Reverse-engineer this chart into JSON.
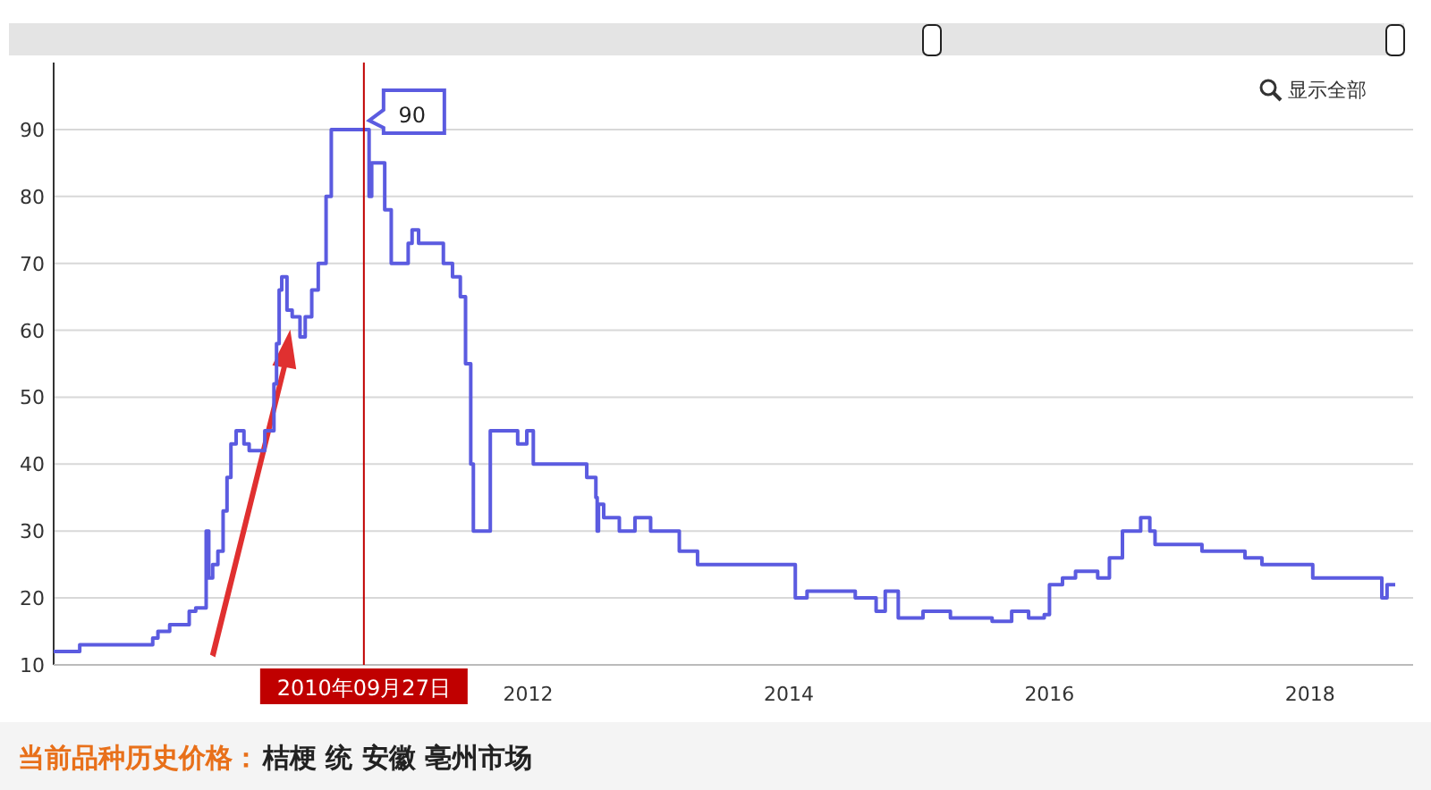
{
  "chart_data": {
    "type": "step",
    "xlim": [
      2008.36,
      2018.79
    ],
    "xticks": [
      2012,
      2014,
      2016,
      2018
    ],
    "ylim": [
      10,
      100
    ],
    "yticks": [
      10,
      20,
      30,
      40,
      50,
      60,
      70,
      80,
      90
    ],
    "grid": "y",
    "line_style": "solid",
    "marker": "none",
    "series": [
      {
        "color": "#5b5be0",
        "x": [
          2008.36,
          2008.56,
          2009.12,
          2009.16,
          2009.25,
          2009.4,
          2009.45,
          2009.53,
          2009.55,
          2009.58,
          2009.62,
          2009.66,
          2009.69,
          2009.72,
          2009.76,
          2009.82,
          2009.86,
          2009.98,
          2010.05,
          2010.07,
          2010.09,
          2010.11,
          2010.15,
          2010.19,
          2010.25,
          2010.29,
          2010.34,
          2010.39,
          2010.45,
          2010.49,
          2010.78,
          2010.8,
          2010.9,
          2010.95,
          2011.08,
          2011.11,
          2011.16,
          2011.35,
          2011.42,
          2011.48,
          2011.52,
          2011.56,
          2011.58,
          2011.71,
          2011.92,
          2011.99,
          2012.04,
          2012.45,
          2012.52,
          2012.53,
          2012.54,
          2012.58,
          2012.64,
          2012.7,
          2012.82,
          2012.94,
          2013.16,
          2013.3,
          2013.47,
          2014.05,
          2014.14,
          2014.51,
          2014.67,
          2014.74,
          2014.84,
          2015.03,
          2015.24,
          2015.56,
          2015.71,
          2015.84,
          2015.96,
          2016.0,
          2016.1,
          2016.2,
          2016.37,
          2016.46,
          2016.56,
          2016.7,
          2016.77,
          2016.81,
          2017.17,
          2017.5,
          2017.63,
          2018.02,
          2018.55,
          2018.59,
          2018.61,
          2018.65
        ],
        "values": [
          12,
          13,
          14,
          15,
          16,
          18,
          18.5,
          30,
          23,
          25,
          27,
          33,
          38,
          43,
          45,
          43,
          42,
          45,
          52,
          58,
          66,
          68,
          63,
          62,
          59,
          62,
          66,
          70,
          80,
          90,
          80,
          85,
          78,
          70,
          73,
          75,
          73,
          70,
          68,
          65,
          55,
          40,
          30,
          45,
          43,
          45,
          40,
          38,
          35,
          30,
          34,
          32,
          32,
          30,
          32,
          30,
          27,
          25,
          25,
          20,
          21,
          20,
          18,
          21,
          17,
          18,
          17,
          16.5,
          18,
          17,
          17.5,
          22,
          23,
          24,
          23,
          26,
          30,
          32,
          30,
          28,
          27,
          26,
          25,
          23,
          20,
          22,
          22,
          22
        ]
      }
    ],
    "ref_lines": [
      {
        "axis": "x",
        "value": 2010.74,
        "label": "2010年09月27日",
        "color": "#c00000"
      }
    ],
    "annotations": [
      {
        "text": "90",
        "x": 2010.74,
        "y": 90
      },
      "显示全部",
      "当前品种历史价格：",
      "桔梗 统 安徽 亳州市场"
    ]
  }
}
